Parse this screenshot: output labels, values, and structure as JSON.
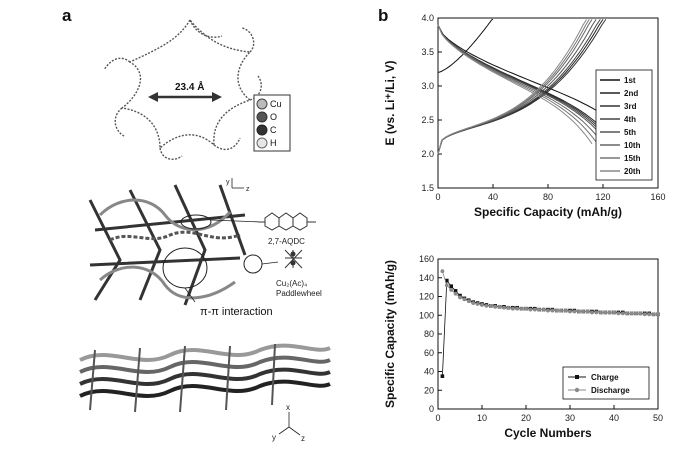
{
  "panels": {
    "a": "a",
    "b": "b"
  },
  "structure": {
    "distance_label": "23.4 Å",
    "atom_legend": [
      "Cu",
      "O",
      "C",
      "H"
    ],
    "ligand_label": "2,7-AQDC",
    "paddlewheel_label": "Cu₂(Ac)₄",
    "paddlewheel_sub": "Paddlewheel",
    "interaction_label": "π-π interaction",
    "axes_mid": {
      "y": "y",
      "z": "z"
    },
    "axes_bottom": {
      "x": "x",
      "y": "y",
      "z": "z"
    }
  },
  "chart_data": [
    {
      "type": "line",
      "xlabel": "Specific Capacity (mAh/g)",
      "ylabel": "E (vs. Li⁺/Li, V)",
      "xlim": [
        0,
        160
      ],
      "ylim": [
        1.5,
        4.0
      ],
      "xticks": [
        0,
        40,
        80,
        120,
        160
      ],
      "yticks": [
        1.5,
        2.0,
        2.5,
        3.0,
        3.5,
        4.0
      ],
      "legend_position": "right",
      "series": [
        {
          "name": "1st",
          "charge_end": 40,
          "discharge_end": 145
        },
        {
          "name": "2nd",
          "charge_end": 120,
          "discharge_end": 130
        },
        {
          "name": "3rd",
          "charge_end": 122,
          "discharge_end": 128
        },
        {
          "name": "4th",
          "charge_end": 118,
          "discharge_end": 126
        },
        {
          "name": "5th",
          "charge_end": 115,
          "discharge_end": 124
        },
        {
          "name": "10th",
          "charge_end": 112,
          "discharge_end": 120
        },
        {
          "name": "15th",
          "charge_end": 110,
          "discharge_end": 116
        },
        {
          "name": "20th",
          "charge_end": 108,
          "discharge_end": 112
        }
      ]
    },
    {
      "type": "scatter",
      "xlabel": "Cycle Numbers",
      "ylabel": "Specific Capacity (mAh/g)",
      "xlim": [
        0,
        50
      ],
      "ylim": [
        0,
        160
      ],
      "xticks": [
        0,
        10,
        20,
        30,
        40,
        50
      ],
      "yticks": [
        0,
        20,
        40,
        60,
        80,
        100,
        120,
        140,
        160
      ],
      "legend_position": "bottom-right",
      "x": [
        1,
        2,
        3,
        4,
        5,
        6,
        7,
        8,
        9,
        10,
        11,
        12,
        13,
        14,
        15,
        16,
        17,
        18,
        19,
        20,
        21,
        22,
        23,
        24,
        25,
        26,
        27,
        28,
        29,
        30,
        31,
        32,
        33,
        34,
        35,
        36,
        37,
        38,
        39,
        40,
        41,
        42,
        43,
        44,
        45,
        46,
        47,
        48,
        49,
        50
      ],
      "series": [
        {
          "name": "Charge",
          "color": "#111111",
          "values": [
            35,
            137,
            131,
            126,
            121,
            118,
            116,
            114,
            113,
            112,
            111,
            110,
            110,
            109,
            109,
            108,
            108,
            108,
            107,
            107,
            107,
            107,
            106,
            106,
            106,
            106,
            105,
            105,
            105,
            105,
            105,
            104,
            104,
            104,
            104,
            104,
            103,
            103,
            103,
            103,
            103,
            103,
            102,
            102,
            102,
            102,
            102,
            102,
            101,
            101
          ]
        },
        {
          "name": "Discharge",
          "color": "#8a8a8a",
          "values": [
            147,
            132,
            127,
            123,
            119,
            117,
            115,
            113,
            112,
            111,
            110,
            110,
            109,
            109,
            108,
            108,
            107,
            107,
            107,
            107,
            106,
            106,
            106,
            106,
            105,
            105,
            105,
            105,
            105,
            104,
            104,
            104,
            104,
            104,
            103,
            103,
            103,
            103,
            103,
            103,
            102,
            102,
            102,
            102,
            102,
            102,
            101,
            101,
            101,
            101
          ]
        }
      ]
    }
  ]
}
